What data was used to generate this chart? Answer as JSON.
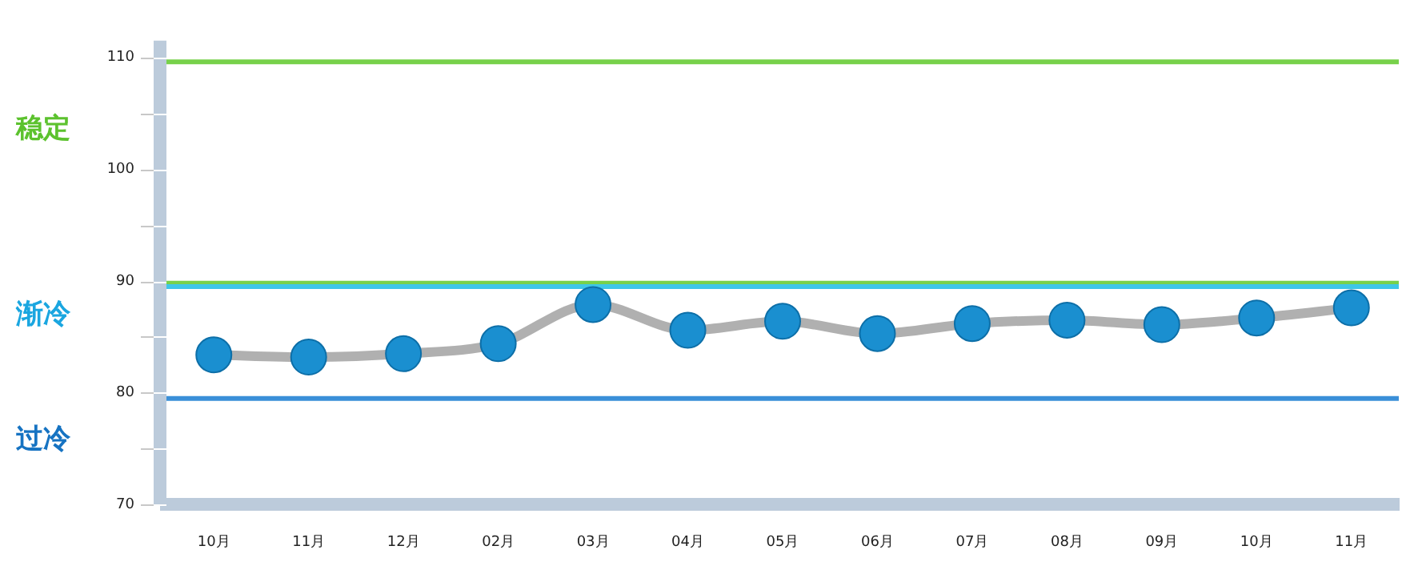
{
  "chart_data": {
    "type": "line",
    "categories": [
      "10月",
      "11月",
      "12月",
      "02月",
      "03月",
      "04月",
      "05月",
      "06月",
      "07月",
      "08月",
      "09月",
      "10月",
      "11月"
    ],
    "series": [
      {
        "color": "#1a8fd0",
        "values": [
          83.4,
          83.2,
          83.5,
          84.4,
          87.9,
          85.6,
          86.4,
          85.3,
          86.2,
          86.5,
          86.1,
          86.7,
          87.6
        ]
      }
    ],
    "ylim": [
      70,
      111.5
    ],
    "yticks": [
      70,
      {
        "value": 75,
        "label": null
      },
      80,
      {
        "value": 85,
        "label": null
      },
      90,
      {
        "value": 95,
        "label": null
      },
      100,
      {
        "value": 105,
        "label": null
      },
      110
    ],
    "ref_lines": [
      {
        "axis": "y",
        "value": 109.6,
        "color": "#77d14a"
      },
      {
        "axis": "y",
        "value": 89.8,
        "color": "#77d14a"
      },
      {
        "axis": "y",
        "value": 89.5,
        "color": "#3ec6e8"
      },
      {
        "axis": "y",
        "value": 79.5,
        "color": "#3a8fd8"
      }
    ],
    "annotations": [
      "稳定",
      "渐冷",
      "过冷"
    ],
    "marker": "circle",
    "grid": false,
    "legend": false
  }
}
